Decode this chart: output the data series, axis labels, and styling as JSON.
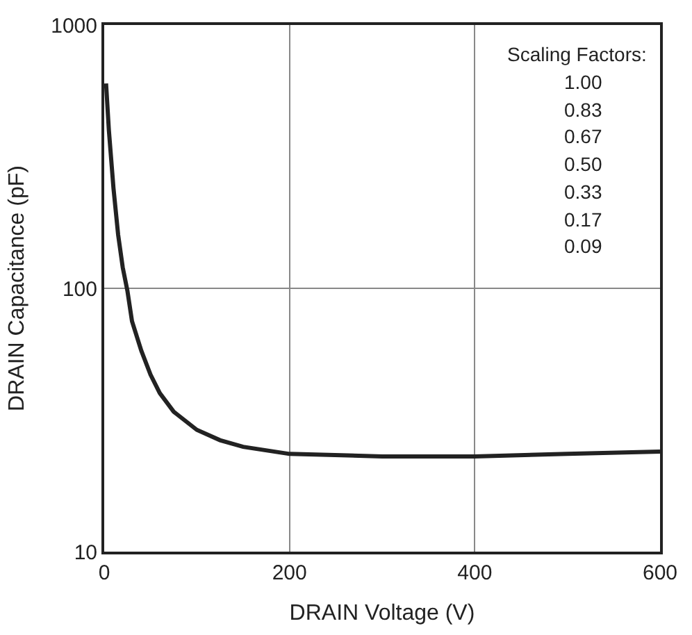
{
  "chart_data": {
    "type": "line",
    "xlabel": "DRAIN Voltage (V)",
    "ylabel": "DRAIN Capacitance (pF)",
    "x": [
      2,
      5,
      10,
      15,
      20,
      25,
      30,
      40,
      50,
      60,
      75,
      100,
      125,
      150,
      200,
      300,
      400,
      500,
      600
    ],
    "series": [
      {
        "color": "#222222",
        "values": [
          600,
          400,
          240,
          160,
          120,
          98,
          75,
          58,
          47,
          40,
          34,
          29,
          26.5,
          25,
          23.5,
          23,
          23,
          23.5,
          24
        ]
      }
    ],
    "xlim": [
      0,
      600
    ],
    "xticks": [
      0,
      200,
      400,
      600
    ],
    "ylim": [
      10,
      1000
    ],
    "yticks": [
      10,
      100,
      1000
    ],
    "log": "y",
    "grid": true,
    "annotations": [
      "Scaling Factors:",
      "1.00",
      "0.83",
      "0.67",
      "0.50",
      "0.33",
      "0.17",
      "0.09"
    ]
  }
}
